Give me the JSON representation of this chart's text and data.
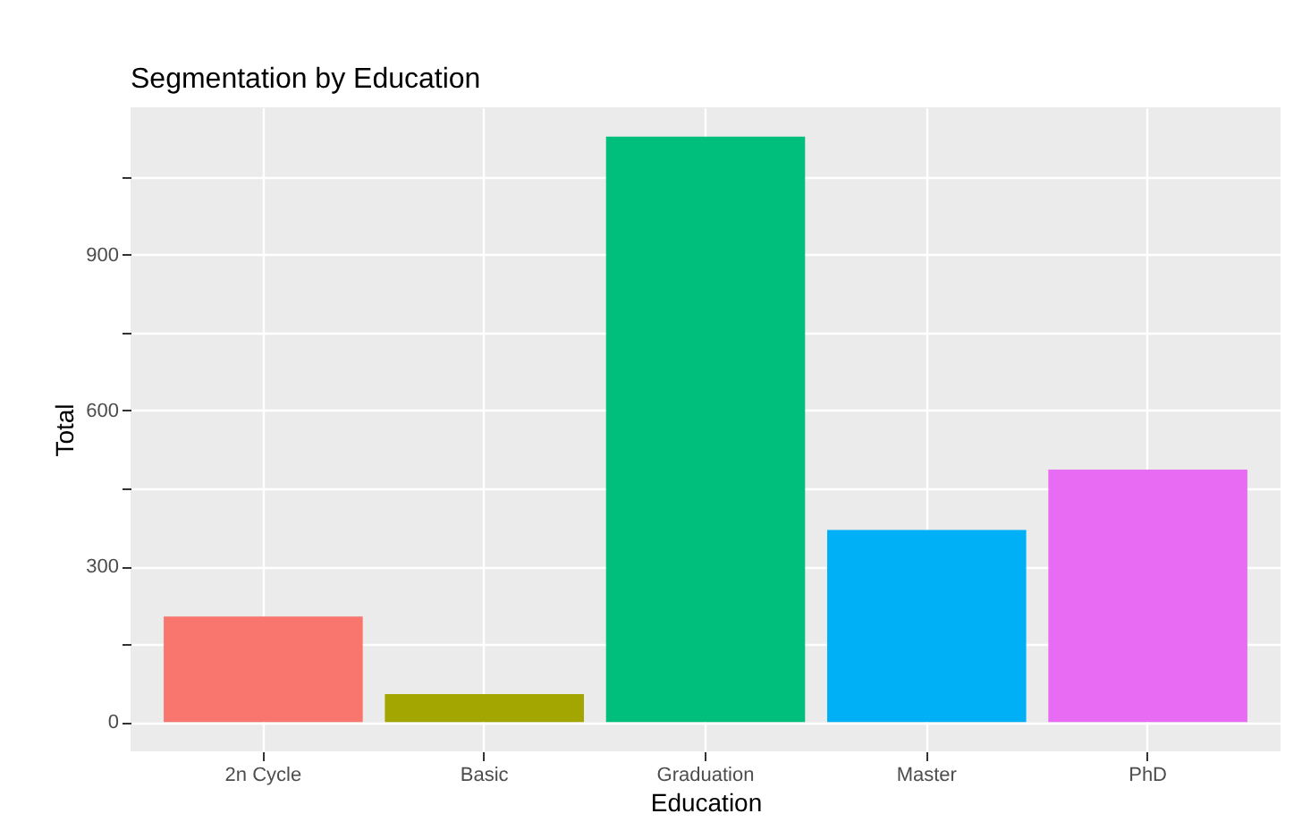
{
  "chart_data": {
    "type": "bar",
    "title": "Segmentation by Education",
    "xlabel": "Education",
    "ylabel": "Total",
    "categories": [
      "2n Cycle",
      "Basic",
      "Graduation",
      "Master",
      "PhD"
    ],
    "values": [
      203,
      54,
      1127,
      370,
      486
    ],
    "colors": [
      "#f8766d",
      "#a3a500",
      "#00bf7d",
      "#00b0f6",
      "#e76bf3"
    ],
    "ylim": [
      -56.35,
      1183.35
    ],
    "yticks": [
      0,
      {
        "value": 150,
        "label": null
      },
      300,
      {
        "value": 450,
        "label": null
      },
      600,
      {
        "value": 750,
        "label": null
      },
      900,
      {
        "value": 1050,
        "label": null
      }
    ],
    "grid": true,
    "legend": false
  }
}
